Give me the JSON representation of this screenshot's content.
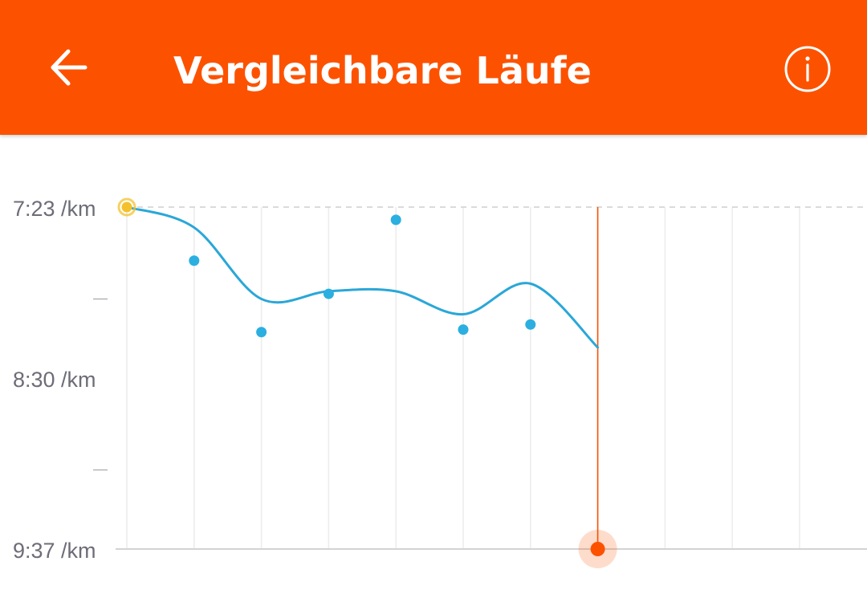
{
  "header": {
    "title": "Vergleichbare Läufe",
    "back_icon": "arrow-left-icon",
    "info_icon": "info-circle-icon",
    "background": "#fc5200"
  },
  "chart_data": {
    "type": "scatter",
    "y_unit": "/km",
    "ylim": [
      "7:23",
      "9:37"
    ],
    "y_reversed": true,
    "y_ticks": [
      "7:23 /km",
      "—",
      "8:30 /km",
      "—",
      "9:37 /km"
    ],
    "x_slots": 11,
    "points": [
      {
        "x": 0,
        "y": "7:23",
        "highlight": "first"
      },
      {
        "x": 1,
        "y": "7:44"
      },
      {
        "x": 2,
        "y": "8:12"
      },
      {
        "x": 3,
        "y": "7:57"
      },
      {
        "x": 4,
        "y": "7:28"
      },
      {
        "x": 5,
        "y": "8:11"
      },
      {
        "x": 6,
        "y": "8:09"
      },
      {
        "x": 7,
        "y": "9:37",
        "highlight": "selected"
      }
    ],
    "trend": [
      {
        "x": 0,
        "y": "7:23"
      },
      {
        "x": 1,
        "y": "7:31"
      },
      {
        "x": 2,
        "y": "7:59"
      },
      {
        "x": 3,
        "y": "7:56"
      },
      {
        "x": 4,
        "y": "7:56"
      },
      {
        "x": 5,
        "y": "8:05"
      },
      {
        "x": 6,
        "y": "7:53"
      },
      {
        "x": 7,
        "y": "8:18"
      }
    ],
    "grid": true,
    "colors": {
      "point": "#2bafe0",
      "trend": "#2aa7d8",
      "first_point": "#f3c12e",
      "selected": "#fc5200",
      "grid": "#ececec",
      "baseline": "#d3d3d3",
      "top_guide": "#cfcfcf"
    }
  }
}
